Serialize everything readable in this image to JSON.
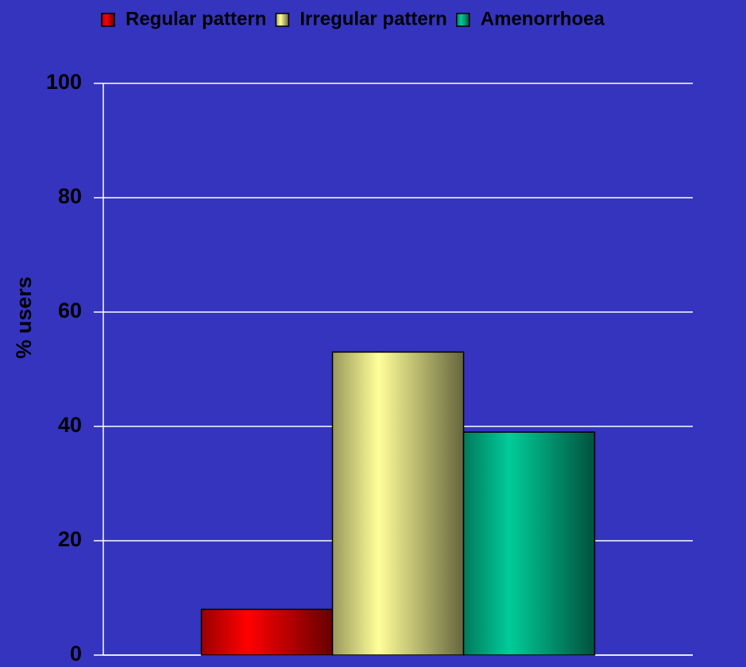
{
  "chart_data": {
    "type": "bar",
    "y_label": "% users",
    "categories": [
      null
    ],
    "series": [
      {
        "name": "Regular pattern",
        "color": "#ff0000",
        "values": [
          8
        ]
      },
      {
        "name": "Irregular pattern",
        "color": "#ffff99",
        "values": [
          53
        ]
      },
      {
        "name": "Amenorrhoea",
        "color": "#00cc99",
        "values": [
          39
        ]
      }
    ],
    "ylim": [
      0,
      100
    ],
    "yticks": [
      0,
      20,
      40,
      60,
      80,
      100
    ],
    "grid": true,
    "legend": "top"
  }
}
